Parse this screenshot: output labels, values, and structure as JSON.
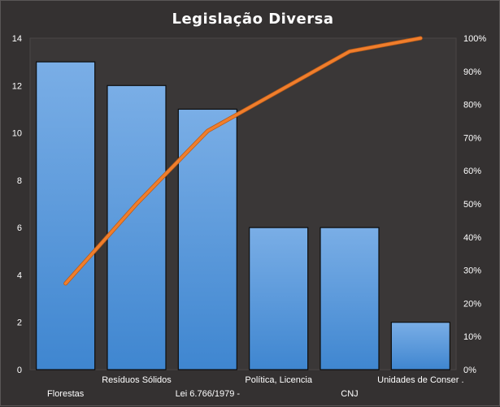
{
  "colors": {
    "background": "#343131",
    "plot_background": "#3a3737",
    "bar_top": "#7aaee6",
    "bar_bottom": "#3f86d0",
    "bar_edge": "#0d0d0d",
    "line": "#f07e2c"
  },
  "chart_data": {
    "type": "bar",
    "title": "Legislação  Diversa",
    "categories": [
      "Florestas",
      "Resíduos Sólidos",
      "Lei 6.766/1979 -",
      "Política, Licencia",
      "CNJ",
      "Unidades de Conser ."
    ],
    "series": [
      {
        "type": "bar",
        "axis": "left",
        "values": [
          13,
          12,
          11,
          6,
          6,
          2
        ]
      },
      {
        "type": "line",
        "axis": "right",
        "values": [
          26,
          50,
          72,
          84,
          96,
          100
        ]
      }
    ],
    "ylim": [
      0,
      14
    ],
    "yticks": [
      "0",
      "2",
      "4",
      "6",
      "8",
      "10",
      "12",
      "14"
    ],
    "y2lim": [
      0,
      100
    ],
    "y2ticks": [
      "0%",
      "10%",
      "20%",
      "30%",
      "40%",
      "50%",
      "60%",
      "70%",
      "80%",
      "90%",
      "100%"
    ],
    "label_rows": [
      1,
      0,
      1,
      0,
      1,
      0
    ],
    "grid": false,
    "legend": "none"
  }
}
